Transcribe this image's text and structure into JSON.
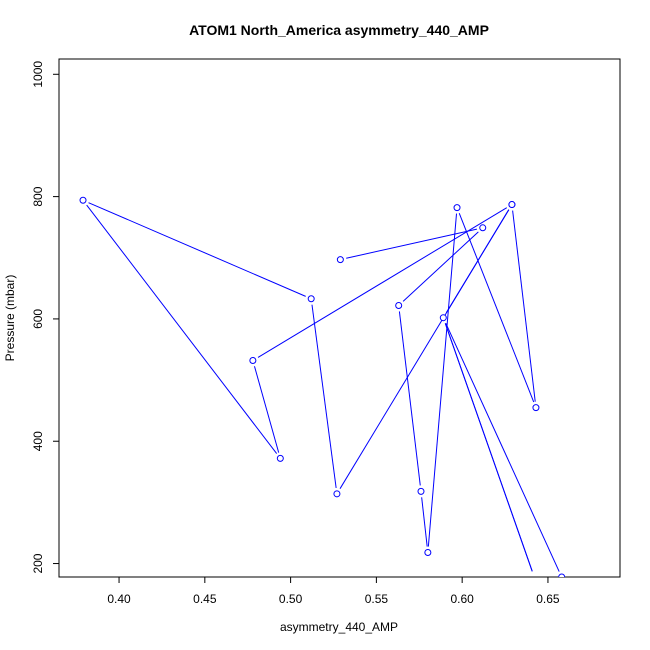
{
  "chart_data": {
    "type": "line",
    "title": "ATOM1 North_America asymmetry_440_AMP",
    "xlabel": "asymmetry_440_AMP",
    "ylabel": "Pressure (mbar)",
    "xlim": [
      0.365,
      0.692
    ],
    "ylim": [
      1025,
      178
    ],
    "y_axis_inverted": true,
    "grid": false,
    "x_ticks": [
      0.4,
      0.45,
      0.5,
      0.55,
      0.6,
      0.65
    ],
    "x_tick_labels": [
      "0.40",
      "0.45",
      "0.50",
      "0.55",
      "0.60",
      "0.65"
    ],
    "y_ticks": [
      200,
      400,
      600,
      800,
      1000
    ],
    "y_tick_labels": [
      "200",
      "400",
      "600",
      "800",
      "1000"
    ],
    "series": [
      {
        "color": "#0000ff",
        "points": [
          {
            "x": 0.529,
            "y": 697
          },
          {
            "x": 0.612,
            "y": 749
          },
          {
            "x": 0.563,
            "y": 622
          },
          {
            "x": 0.576,
            "y": 318
          },
          {
            "x": 0.58,
            "y": 218
          },
          {
            "x": 0.597,
            "y": 782
          },
          {
            "x": 0.643,
            "y": 455
          },
          {
            "x": 0.629,
            "y": 787
          },
          {
            "x": 0.527,
            "y": 314
          },
          {
            "x": 0.512,
            "y": 633
          },
          {
            "x": 0.379,
            "y": 794
          },
          {
            "x": 0.494,
            "y": 372
          },
          {
            "x": 0.478,
            "y": 532
          },
          {
            "x": 0.629,
            "y": 787
          },
          {
            "x": 0.589,
            "y": 602
          },
          {
            "x": 0.658,
            "y": 178
          }
        ],
        "extra_segments": [
          {
            "from": {
              "x": 0.589,
              "y": 602
            },
            "to": {
              "x": 0.642,
              "y": 178
            }
          },
          {
            "from": {
              "x": 0.589,
              "y": 602
            },
            "to": {
              "x": 0.642,
              "y": 178
            }
          }
        ]
      }
    ]
  }
}
